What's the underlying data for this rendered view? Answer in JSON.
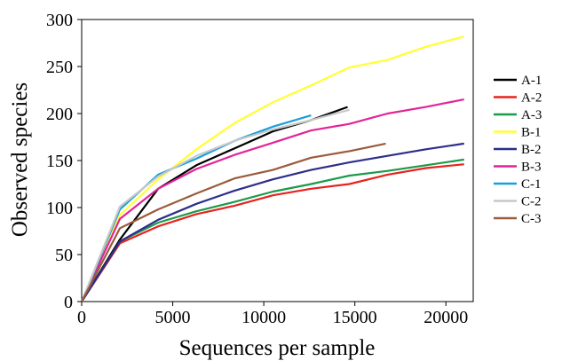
{
  "chart_data": {
    "type": "line",
    "title": "",
    "xlabel": "Sequences per sample",
    "ylabel": "Observed species",
    "xlim": [
      0,
      21500
    ],
    "ylim": [
      0,
      300
    ],
    "x_ticks": [
      0,
      5000,
      10000,
      15000,
      20000
    ],
    "y_ticks": [
      0,
      50,
      100,
      150,
      200,
      250,
      300
    ],
    "grid": false,
    "legend_position": "right",
    "series": [
      {
        "name": "A-1",
        "color": "#000000",
        "x": [
          0,
          2100,
          4200,
          6300,
          8400,
          10500,
          12600,
          14600
        ],
        "y": [
          0,
          66,
          120,
          145,
          163,
          181,
          193,
          207
        ]
      },
      {
        "name": "A-2",
        "color": "#e8221e",
        "x": [
          0,
          2100,
          4200,
          6300,
          8400,
          10500,
          12600,
          14700,
          16800,
          18900,
          21000
        ],
        "y": [
          0,
          62,
          80,
          93,
          102,
          113,
          120,
          125,
          135,
          142,
          146
        ]
      },
      {
        "name": "A-3",
        "color": "#1a9a4a",
        "x": [
          0,
          2100,
          4200,
          6300,
          8400,
          10500,
          12600,
          14700,
          16800,
          18900,
          21000
        ],
        "y": [
          0,
          64,
          84,
          96,
          106,
          117,
          125,
          134,
          139,
          145,
          151
        ]
      },
      {
        "name": "B-1",
        "color": "#ffff33",
        "x": [
          0,
          2100,
          4200,
          6300,
          8400,
          10500,
          12600,
          14700,
          16800,
          18900,
          21000
        ],
        "y": [
          0,
          92,
          130,
          162,
          190,
          212,
          230,
          249,
          257,
          271,
          282
        ]
      },
      {
        "name": "B-2",
        "color": "#2d2d8c",
        "x": [
          0,
          2100,
          4200,
          6300,
          8400,
          10500,
          12600,
          14700,
          16800,
          18900,
          21000
        ],
        "y": [
          0,
          64,
          87,
          104,
          118,
          130,
          140,
          148,
          155,
          162,
          168
        ]
      },
      {
        "name": "B-3",
        "color": "#e2249a",
        "x": [
          0,
          2100,
          4200,
          6300,
          8400,
          10500,
          12600,
          14700,
          16800,
          18900,
          21000
        ],
        "y": [
          0,
          88,
          120,
          141,
          156,
          169,
          182,
          189,
          200,
          207,
          215
        ]
      },
      {
        "name": "C-1",
        "color": "#1a9fd8",
        "x": [
          0,
          2100,
          4200,
          6300,
          8400,
          10500,
          12600
        ],
        "y": [
          0,
          98,
          135,
          152,
          171,
          186,
          198
        ]
      },
      {
        "name": "C-2",
        "color": "#c8c8c8",
        "x": [
          0,
          2100,
          4200,
          6300,
          8400,
          10500,
          12600,
          14700
        ],
        "y": [
          0,
          101,
          133,
          155,
          171,
          183,
          193,
          204
        ]
      },
      {
        "name": "C-3",
        "color": "#9b5a3c",
        "x": [
          0,
          2100,
          4200,
          6300,
          8400,
          10500,
          12600,
          14700,
          16700
        ],
        "y": [
          0,
          78,
          98,
          115,
          131,
          140,
          153,
          160,
          168
        ]
      }
    ]
  }
}
